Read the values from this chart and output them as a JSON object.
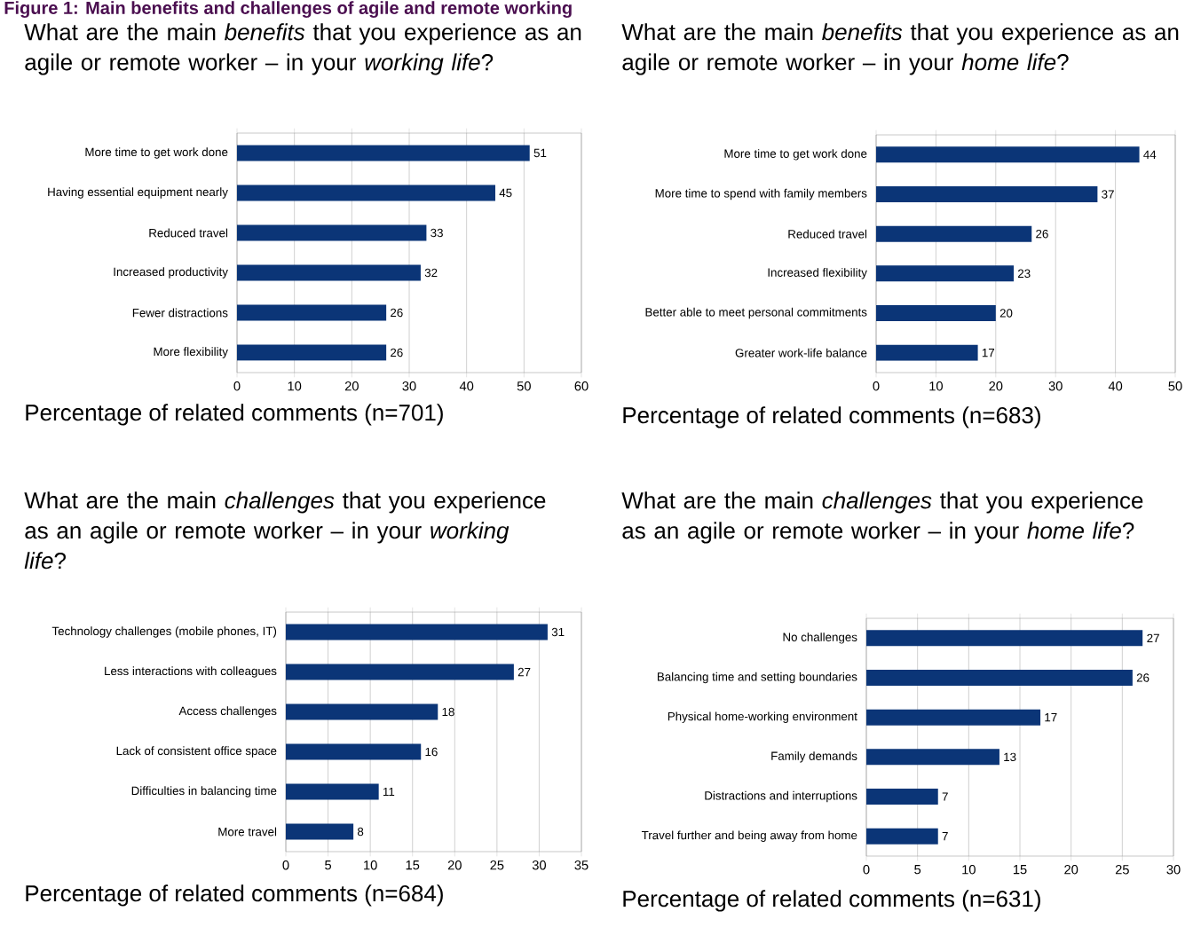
{
  "chart_data": [
    {
      "type": "other",
      "title": "**Figure 1: Main benefits and challenges of agile and remote working**"
    },
    {
      "type": "bar",
      "orientation": "horizontal",
      "title": "What are the main *benefits* that you experience as an agile or remote worker – in your *working life*?",
      "xlabel": "Percentage of related comments (n=701)",
      "categories": [
        "More time to get work done",
        "Having essential equipment nearly",
        "Reduced travel",
        "Increased productivity",
        "Fewer distractions",
        "More flexibility"
      ],
      "values": [
        51,
        45,
        33,
        32,
        26,
        26
      ],
      "color": "#0b3577",
      "xlim": [
        0,
        60
      ],
      "xticks": [
        0,
        10,
        20,
        30,
        40,
        50,
        60
      ],
      "grid": "x",
      "data_labels": true
    },
    {
      "type": "bar",
      "orientation": "horizontal",
      "title": "What are the main *benefits* that you experience as an agile or remote worker – in your *home life*?",
      "xlabel": "Percentage of related comments (n=683)",
      "categories": [
        "More time to get work done",
        "More time to spend with family members",
        "Reduced travel",
        "Increased flexibility",
        "Better able to meet personal commitments",
        "Greater work-life balance"
      ],
      "values": [
        44,
        37,
        26,
        23,
        20,
        17
      ],
      "color": "#0b3577",
      "xlim": [
        0,
        50
      ],
      "xticks": [
        0,
        10,
        20,
        30,
        40,
        50
      ],
      "grid": "x",
      "data_labels": true
    },
    {
      "type": "bar",
      "orientation": "horizontal",
      "title": "What are the main *challenges* that you experience as an agile or remote worker – in your *working life*?",
      "xlabel": "Percentage of related comments (n=684)",
      "categories": [
        "Technology challenges (mobile phones, IT)",
        "Less interactions with colleagues",
        "Access challenges",
        "Lack of consistent office space",
        "Difficulties in balancing time",
        "More travel"
      ],
      "values": [
        31,
        27,
        18,
        16,
        11,
        8
      ],
      "color": "#0b3577",
      "xlim": [
        0,
        35
      ],
      "xticks": [
        0,
        5,
        10,
        15,
        20,
        25,
        30,
        35
      ],
      "grid": "x",
      "data_labels": true
    },
    {
      "type": "bar",
      "orientation": "horizontal",
      "title": "What are the main *challenges* that you experience as an agile or remote worker – in your *home life*?",
      "xlabel": "Percentage of related comments (n=631)",
      "categories": [
        "No challenges",
        "Balancing time and setting boundaries",
        "Physical home-working environment",
        "Family demands",
        "Distractions and interruptions",
        "Travel further and being away from home"
      ],
      "values": [
        27,
        26,
        17,
        13,
        7,
        7
      ],
      "color": "#0b3577",
      "xlim": [
        0,
        30
      ],
      "xticks": [
        0,
        5,
        10,
        15,
        20,
        25,
        30
      ],
      "grid": "x",
      "data_labels": true
    }
  ]
}
